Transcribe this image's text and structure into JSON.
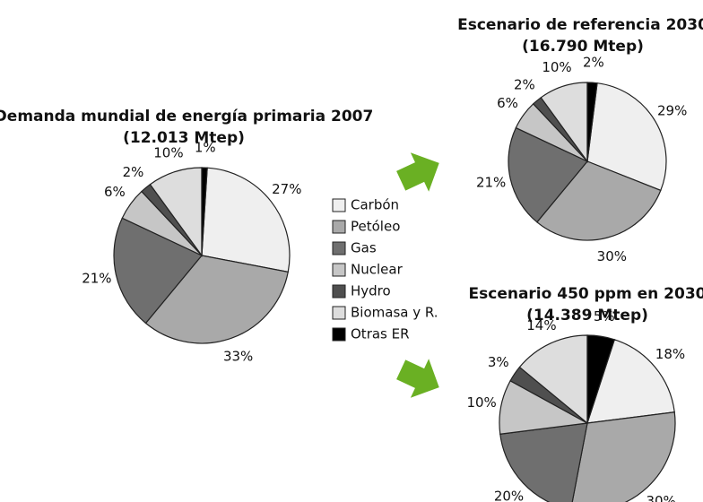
{
  "chart_data": [
    {
      "type": "pie",
      "title": "Demanda mundial de energía primaria 2007",
      "subtitle": "(12.013 Mtep)",
      "categories": [
        "Carbón",
        "Petóleo",
        "Gas",
        "Nuclear",
        "Hydro",
        "Biomasa y R.",
        "Otras ER"
      ],
      "values": [
        27,
        33,
        21,
        6,
        2,
        10,
        1
      ],
      "value_labels": [
        "27%",
        "33%",
        "21%",
        "6%",
        "2%",
        "10%",
        "1%"
      ],
      "colors": [
        "#efefef",
        "#a9a9a9",
        "#6f6f6f",
        "#c6c6c6",
        "#4f4f4f",
        "#dddddd",
        "#000000"
      ]
    },
    {
      "type": "pie",
      "title": "Escenario de referencia 2030",
      "subtitle": "(16.790 Mtep)",
      "categories": [
        "Carbón",
        "Petóleo",
        "Gas",
        "Nuclear",
        "Hydro",
        "Biomasa y R.",
        "Otras ER"
      ],
      "values": [
        29,
        30,
        21,
        6,
        2,
        10,
        2
      ],
      "value_labels": [
        "29%",
        "30%",
        "21%",
        "6%",
        "2%",
        "10%",
        "2%"
      ],
      "colors": [
        "#efefef",
        "#a9a9a9",
        "#6f6f6f",
        "#c6c6c6",
        "#4f4f4f",
        "#dddddd",
        "#000000"
      ]
    },
    {
      "type": "pie",
      "title": "Escenario 450 ppm en 2030",
      "subtitle": "(14.389 Mtep)",
      "categories": [
        "Carbón",
        "Petóleo",
        "Gas",
        "Nuclear",
        "Hydro",
        "Biomasa y R.",
        "Otras ER"
      ],
      "values": [
        18,
        30,
        20,
        10,
        3,
        14,
        5
      ],
      "value_labels": [
        "18%",
        "30%",
        "20%",
        "10%",
        "3%",
        "14%",
        "5%"
      ],
      "colors": [
        "#efefef",
        "#a9a9a9",
        "#6f6f6f",
        "#c6c6c6",
        "#4f4f4f",
        "#dddddd",
        "#000000"
      ]
    }
  ]
}
